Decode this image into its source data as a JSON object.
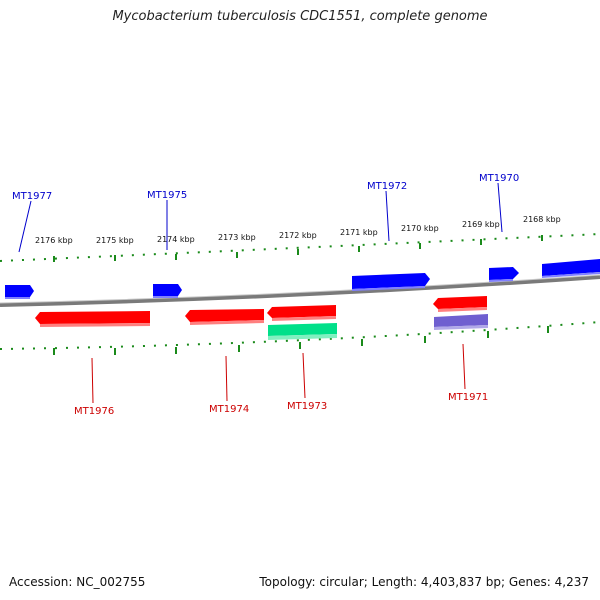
{
  "title": "Mycobacterium tuberculosis CDC1551, complete genome",
  "footer": {
    "accession": "Accession: NC_002755",
    "summary": "Topology: circular; Length: 4,403,837 bp; Genes: 4,237"
  },
  "ruler": {
    "ticks": [
      "2176 kbp",
      "2175 kbp",
      "2174 kbp",
      "2173 kbp",
      "2172 kbp",
      "2171 kbp",
      "2170 kbp",
      "2169 kbp",
      "2168 kbp"
    ]
  },
  "labels": {
    "top": [
      "MT1977",
      "MT1975",
      "MT1972",
      "MT1970"
    ],
    "bottom": [
      "MT1976",
      "MT1974",
      "MT1973",
      "MT1971"
    ]
  },
  "colors": {
    "forward_gene": "#0000ff",
    "reverse_gene": "#ff0000",
    "rna_feature": "#00e08a",
    "other_feature": "#6f5fd0",
    "ruler": "#1a8a1a",
    "backbone": "#888888"
  }
}
